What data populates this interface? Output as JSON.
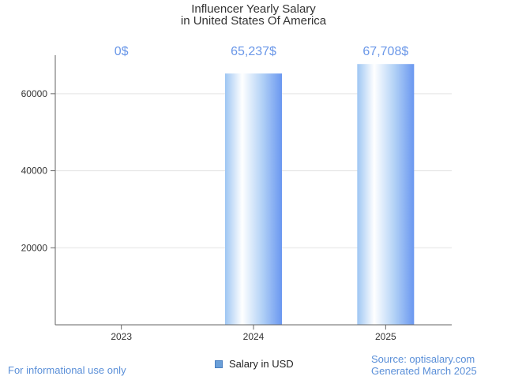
{
  "chart_data": {
    "type": "bar",
    "title": "Influencer Yearly Salary",
    "subtitle": "in United States Of America",
    "categories": [
      "2023",
      "2024",
      "2025"
    ],
    "series": [
      {
        "name": "Salary in USD",
        "values": [
          0,
          65237,
          67708
        ]
      }
    ],
    "data_labels": [
      "0$",
      "65,237$",
      "67,708$"
    ],
    "y_ticks": [
      20000,
      40000,
      60000
    ],
    "y_tick_labels": [
      "20000",
      "40000",
      "60000"
    ],
    "ylim": [
      0,
      70000
    ],
    "grid": true,
    "legend_position": "bottom",
    "colors": {
      "bar_edge": "#6a97f0",
      "bar_light": "#ffffff",
      "bar_mid": "#a8cdf5",
      "label": "#6a97e8"
    }
  },
  "footer": {
    "disclaimer": "For informational use only",
    "source": "Source: optisalary.com",
    "generated": "Generated March 2025"
  }
}
